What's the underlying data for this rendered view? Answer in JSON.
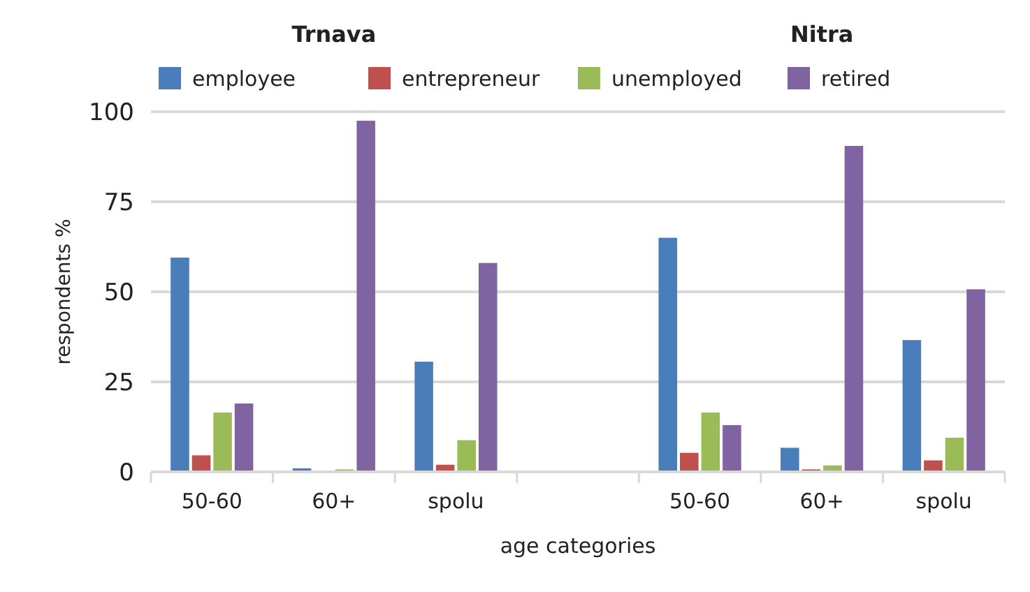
{
  "chart_data": {
    "type": "bar",
    "ylabel": "respondents %",
    "xlabel": "age categories",
    "annotations": [
      "Trnava",
      "Nitra"
    ],
    "categories": [
      "50-60",
      "60+",
      "spolu",
      null,
      "50-60",
      "60+",
      "spolu"
    ],
    "series": [
      {
        "name": "employee",
        "color": "#4a7ebb",
        "values": [
          59.5,
          1,
          30.6,
          null,
          65,
          6.7,
          36.6
        ]
      },
      {
        "name": "entrepreneur",
        "color": "#c0504d",
        "values": [
          4.6,
          0,
          2,
          null,
          5.3,
          0.7,
          3.2
        ]
      },
      {
        "name": "unemployed",
        "color": "#9bbb59",
        "values": [
          16.5,
          0.7,
          8.8,
          null,
          16.5,
          1.8,
          9.5
        ]
      },
      {
        "name": "retired",
        "color": "#8064a2",
        "values": [
          19,
          97.5,
          58,
          null,
          13,
          90.5,
          50.7
        ]
      }
    ],
    "ylim": [
      0,
      100
    ],
    "yticks": [
      0,
      25,
      50,
      75,
      100
    ],
    "grid": "y",
    "legend": "top"
  }
}
